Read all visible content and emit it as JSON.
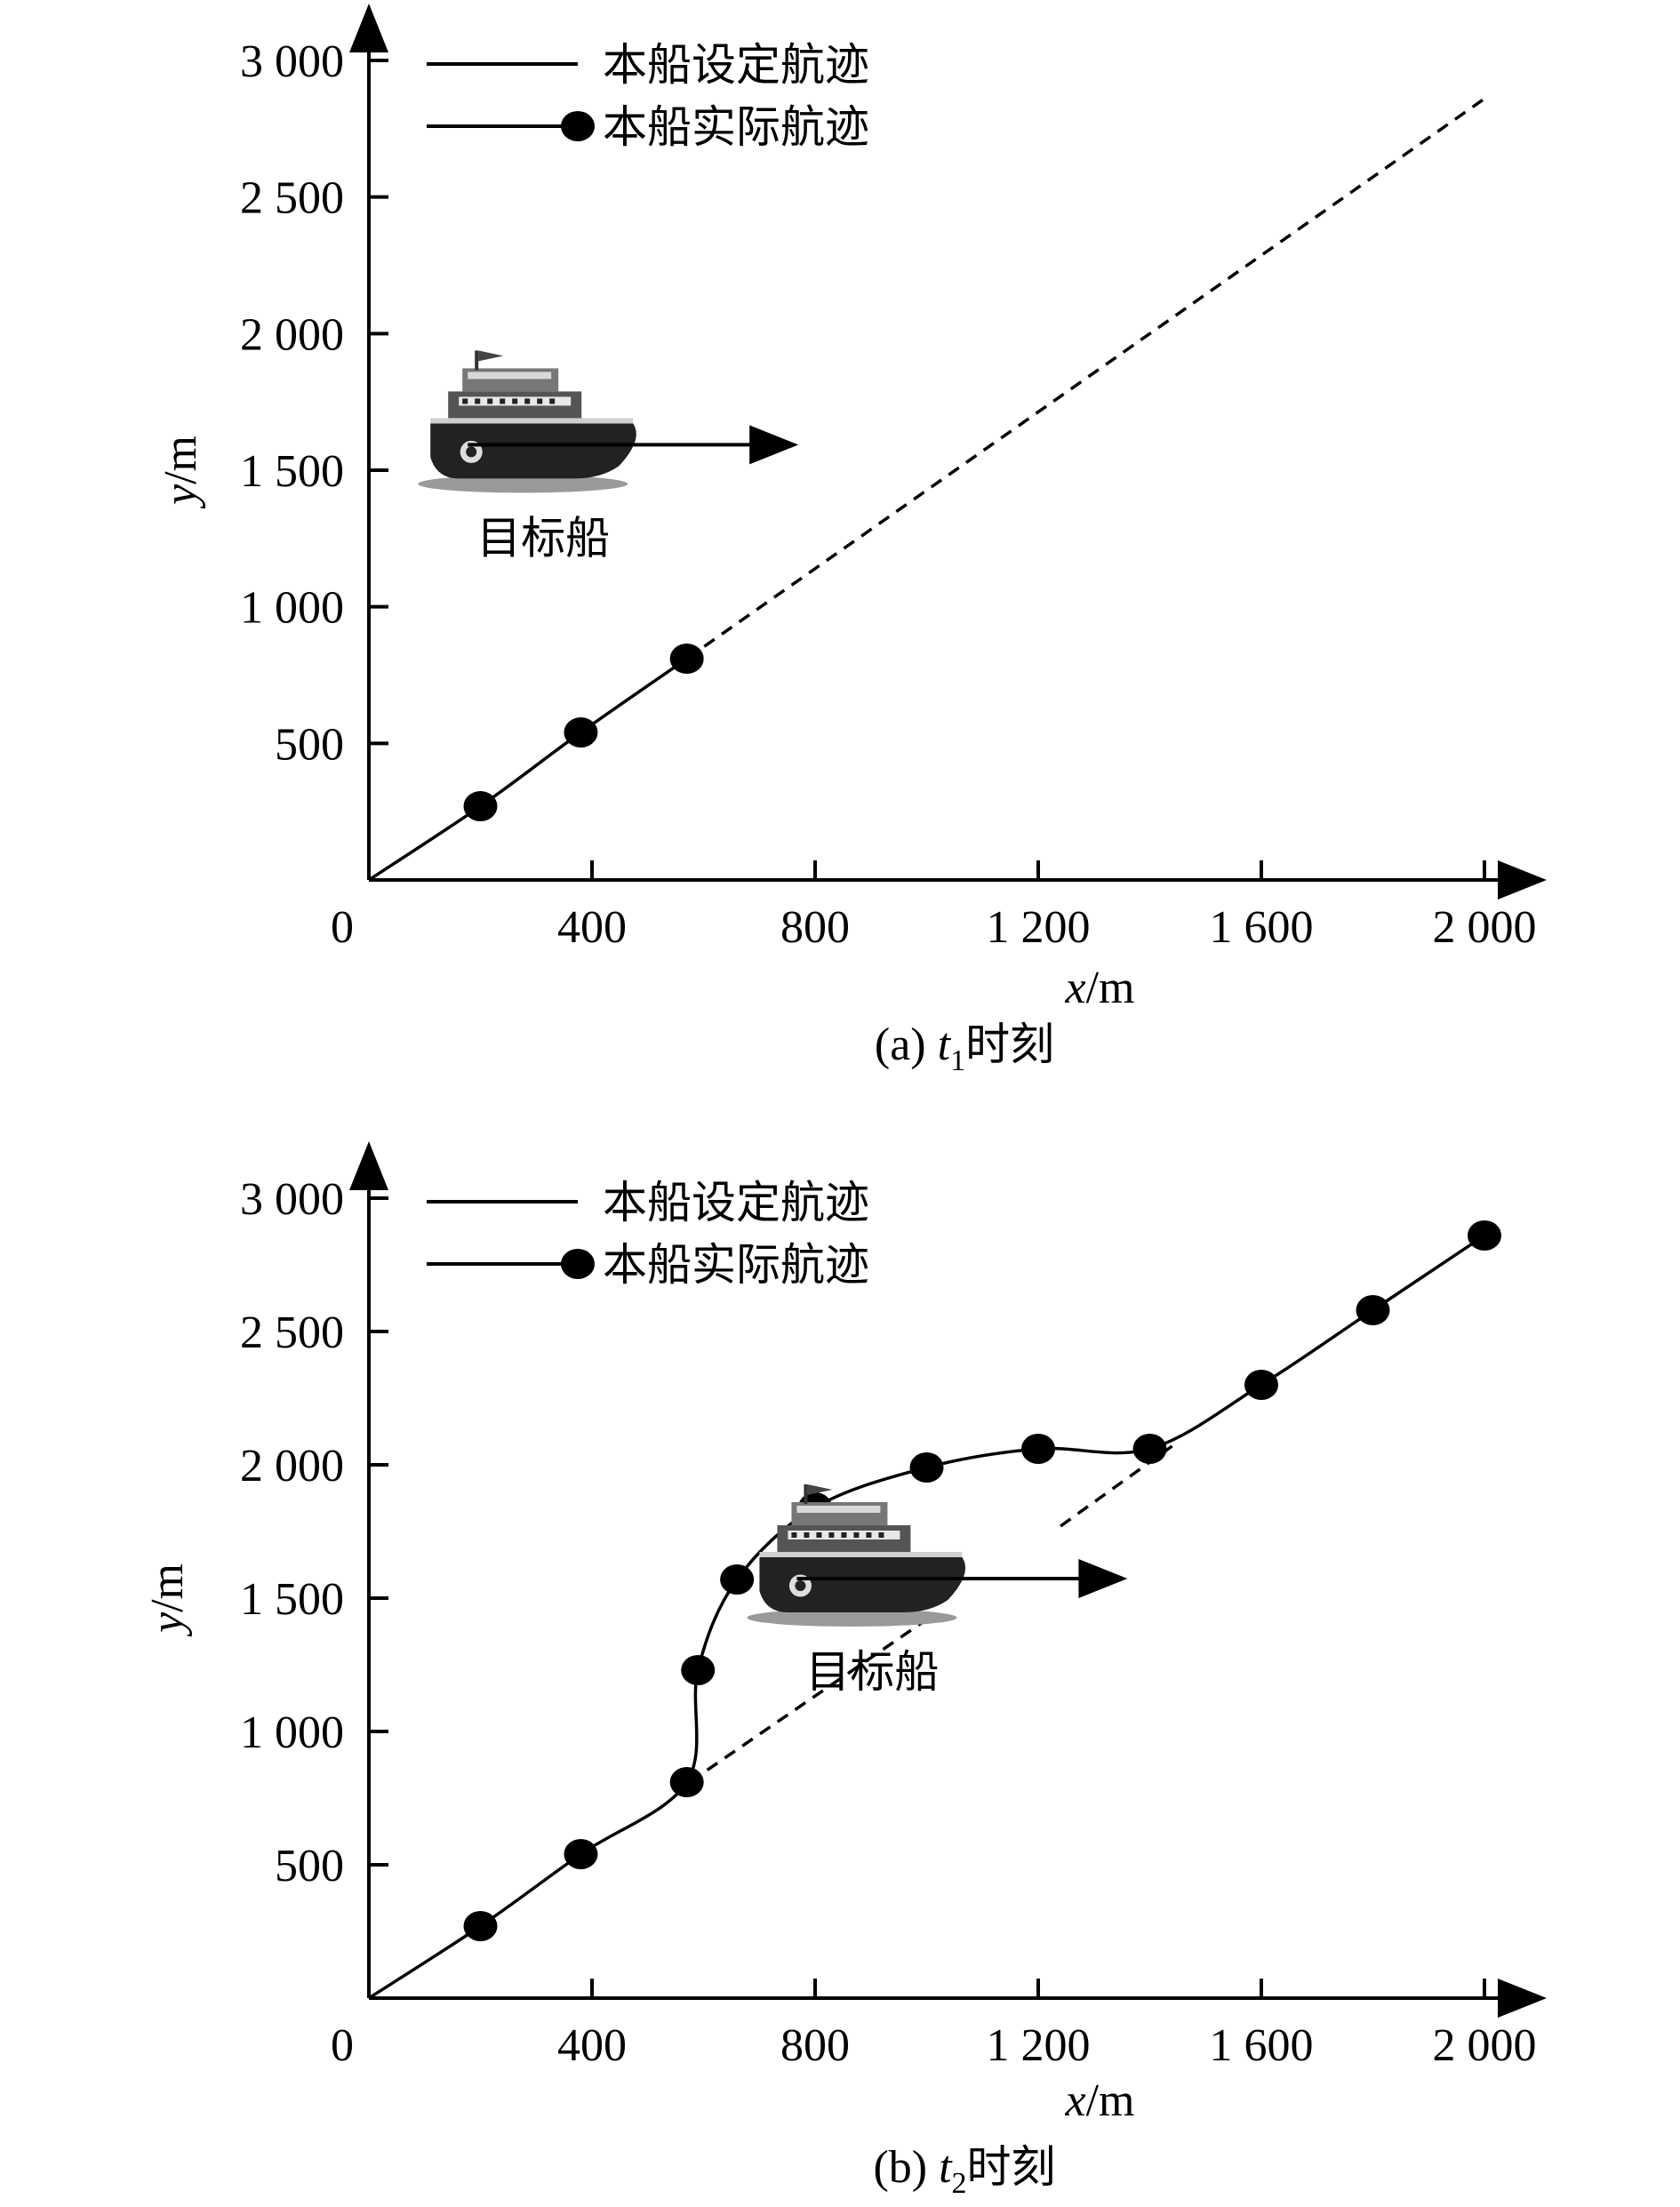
{
  "chart_data": [
    {
      "type": "line",
      "caption": {
        "prefix": "(a) ",
        "var": "t",
        "sub": "1",
        "suffix": "时刻"
      },
      "xlabel": {
        "var": "x",
        "unit": "/m"
      },
      "ylabel": {
        "var": "y",
        "unit": "/m"
      },
      "xlim": [
        0,
        2000
      ],
      "ylim": [
        0,
        3000
      ],
      "xticks": [
        {
          "value": 0,
          "label": "0"
        },
        {
          "value": 400,
          "label": "400"
        },
        {
          "value": 800,
          "label": "800"
        },
        {
          "value": 1200,
          "label": "1 200"
        },
        {
          "value": 1600,
          "label": "1 600"
        },
        {
          "value": 2000,
          "label": "2 000"
        }
      ],
      "yticks": [
        {
          "value": 500,
          "label": "500"
        },
        {
          "value": 1000,
          "label": "1 000"
        },
        {
          "value": 1500,
          "label": "1 500"
        },
        {
          "value": 2000,
          "label": "2 000"
        },
        {
          "value": 2500,
          "label": "2 500"
        },
        {
          "value": 3000,
          "label": "3 000"
        }
      ],
      "legend": {
        "position": "top-left",
        "items": [
          "本船设定航迹",
          "本船实际航迹"
        ]
      },
      "series": [
        {
          "name": "本船设定航迹",
          "style": "dashed",
          "x": [
            570,
            2000
          ],
          "y": [
            810,
            2860
          ]
        },
        {
          "name": "本船实际航迹",
          "style": "solid-markers",
          "x": [
            0,
            200,
            380,
            570
          ],
          "y": [
            0,
            270,
            540,
            810
          ],
          "markers": [
            false,
            true,
            true,
            true
          ]
        }
      ],
      "target_ship": {
        "label": "目标船",
        "x": 480,
        "y": 1580,
        "heading_to_x": 770
      }
    },
    {
      "type": "line",
      "caption": {
        "prefix": "(b) ",
        "var": "t",
        "sub": "2",
        "suffix": "时刻"
      },
      "xlabel": {
        "var": "x",
        "unit": "/m"
      },
      "ylabel": {
        "var": "y",
        "unit": "/m"
      },
      "xlim": [
        0,
        2000
      ],
      "ylim": [
        0,
        3000
      ],
      "xticks": [
        {
          "value": 0,
          "label": "0"
        },
        {
          "value": 400,
          "label": "400"
        },
        {
          "value": 800,
          "label": "800"
        },
        {
          "value": 1200,
          "label": "1 200"
        },
        {
          "value": 1600,
          "label": "1 600"
        },
        {
          "value": 2000,
          "label": "2 000"
        }
      ],
      "yticks": [
        {
          "value": 500,
          "label": "500"
        },
        {
          "value": 1000,
          "label": "1 000"
        },
        {
          "value": 1500,
          "label": "1 500"
        },
        {
          "value": 2000,
          "label": "2 000"
        },
        {
          "value": 2500,
          "label": "2 500"
        },
        {
          "value": 3000,
          "label": "3 000"
        }
      ],
      "legend": {
        "position": "top-left",
        "items": [
          "本船设定航迹",
          "本船实际航迹"
        ]
      },
      "series": [
        {
          "name": "本船设定航迹",
          "style": "dashed",
          "segments": [
            {
              "x": [
                575,
                1000
              ],
              "y": [
                810,
                1420
              ]
            },
            {
              "x": [
                1240,
                1440
              ],
              "y": [
                1770,
                2070
              ]
            }
          ]
        },
        {
          "name": "本船实际航迹",
          "style": "solid-markers",
          "x": [
            0,
            200,
            380,
            570,
            590,
            660,
            800,
            1000,
            1200,
            1400,
            1600,
            1800,
            2000
          ],
          "y": [
            0,
            270,
            540,
            810,
            1230,
            1570,
            1840,
            1990,
            2060,
            2060,
            2300,
            2580,
            2860
          ],
          "markers": [
            false,
            true,
            true,
            true,
            true,
            true,
            true,
            true,
            true,
            true,
            true,
            true,
            true
          ]
        }
      ],
      "target_ship": {
        "label": "目标船",
        "x": 1070,
        "y": 1560,
        "heading_to_x": 1360
      }
    }
  ]
}
